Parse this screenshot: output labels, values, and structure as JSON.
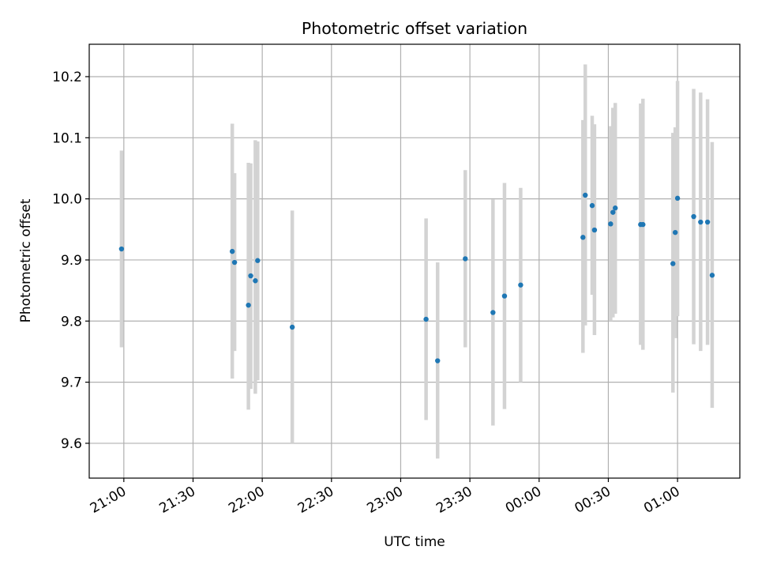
{
  "chart_data": {
    "type": "scatter",
    "title": "Photometric offset variation",
    "xlabel": "UTC time",
    "ylabel": "Photometric offset",
    "grid": true,
    "x_axis": {
      "kind": "time",
      "range": [
        "20:45",
        "01:27"
      ],
      "tick_values": [
        "21:00",
        "21:30",
        "22:00",
        "22:30",
        "23:00",
        "23:30",
        "00:00",
        "00:30",
        "01:00"
      ],
      "tick_labels": [
        "21:00",
        "21:30",
        "22:00",
        "22:30",
        "23:00",
        "23:30",
        "00:00",
        "00:30",
        "01:00"
      ]
    },
    "y_axis": {
      "range": [
        9.543,
        10.253
      ],
      "ticks": [
        9.6,
        9.7,
        9.8,
        9.9,
        10.0,
        10.1,
        10.2
      ],
      "tick_labels": [
        "9.6",
        "9.7",
        "9.8",
        "9.9",
        "10.0",
        "10.1",
        "10.2"
      ]
    },
    "colors": {
      "marker": "#1f77b4",
      "errorbar": "#d3d3d3",
      "grid": "#b0b0b0"
    },
    "points": [
      {
        "time": "20:59",
        "value": 9.918,
        "err_low": 9.757,
        "err_high": 10.079
      },
      {
        "time": "21:47",
        "value": 9.914,
        "err_low": 9.706,
        "err_high": 10.123
      },
      {
        "time": "21:48",
        "value": 9.896,
        "err_low": 9.751,
        "err_high": 10.042
      },
      {
        "time": "21:54",
        "value": 9.826,
        "err_low": 9.655,
        "err_high": 10.059
      },
      {
        "time": "21:55",
        "value": 9.874,
        "err_low": 9.689,
        "err_high": 10.058
      },
      {
        "time": "21:57",
        "value": 9.866,
        "err_low": 9.681,
        "err_high": 10.096
      },
      {
        "time": "21:58",
        "value": 9.899,
        "err_low": 9.703,
        "err_high": 10.094
      },
      {
        "time": "22:13",
        "value": 9.79,
        "err_low": 9.6,
        "err_high": 9.981
      },
      {
        "time": "23:11",
        "value": 9.803,
        "err_low": 9.638,
        "err_high": 9.968
      },
      {
        "time": "23:16",
        "value": 9.735,
        "err_low": 9.575,
        "err_high": 9.896
      },
      {
        "time": "23:28",
        "value": 9.902,
        "err_low": 9.757,
        "err_high": 10.047
      },
      {
        "time": "23:40",
        "value": 9.814,
        "err_low": 9.629,
        "err_high": 9.999
      },
      {
        "time": "23:45",
        "value": 9.841,
        "err_low": 9.656,
        "err_high": 10.026
      },
      {
        "time": "23:52",
        "value": 9.859,
        "err_low": 9.7,
        "err_high": 10.018
      },
      {
        "time": "00:19",
        "value": 9.937,
        "err_low": 9.748,
        "err_high": 10.129
      },
      {
        "time": "00:20",
        "value": 10.006,
        "err_low": 9.793,
        "err_high": 10.22
      },
      {
        "time": "00:23",
        "value": 9.989,
        "err_low": 9.843,
        "err_high": 10.136
      },
      {
        "time": "00:24",
        "value": 9.949,
        "err_low": 9.777,
        "err_high": 10.122
      },
      {
        "time": "00:31",
        "value": 9.959,
        "err_low": 9.8,
        "err_high": 10.119
      },
      {
        "time": "00:32",
        "value": 9.978,
        "err_low": 9.806,
        "err_high": 10.149
      },
      {
        "time": "00:33",
        "value": 9.985,
        "err_low": 9.812,
        "err_high": 10.157
      },
      {
        "time": "00:44",
        "value": 9.958,
        "err_low": 9.761,
        "err_high": 10.156
      },
      {
        "time": "00:45",
        "value": 9.958,
        "err_low": 9.753,
        "err_high": 10.164
      },
      {
        "time": "00:58",
        "value": 9.894,
        "err_low": 9.683,
        "err_high": 10.108
      },
      {
        "time": "00:59",
        "value": 9.945,
        "err_low": 9.772,
        "err_high": 10.117
      },
      {
        "time": "01:00",
        "value": 10.001,
        "err_low": 9.808,
        "err_high": 10.193
      },
      {
        "time": "01:07",
        "value": 9.971,
        "err_low": 9.762,
        "err_high": 10.18
      },
      {
        "time": "01:10",
        "value": 9.962,
        "err_low": 9.751,
        "err_high": 10.174
      },
      {
        "time": "01:13",
        "value": 9.962,
        "err_low": 9.761,
        "err_high": 10.163
      },
      {
        "time": "01:15",
        "value": 9.875,
        "err_low": 9.658,
        "err_high": 10.093
      }
    ]
  }
}
